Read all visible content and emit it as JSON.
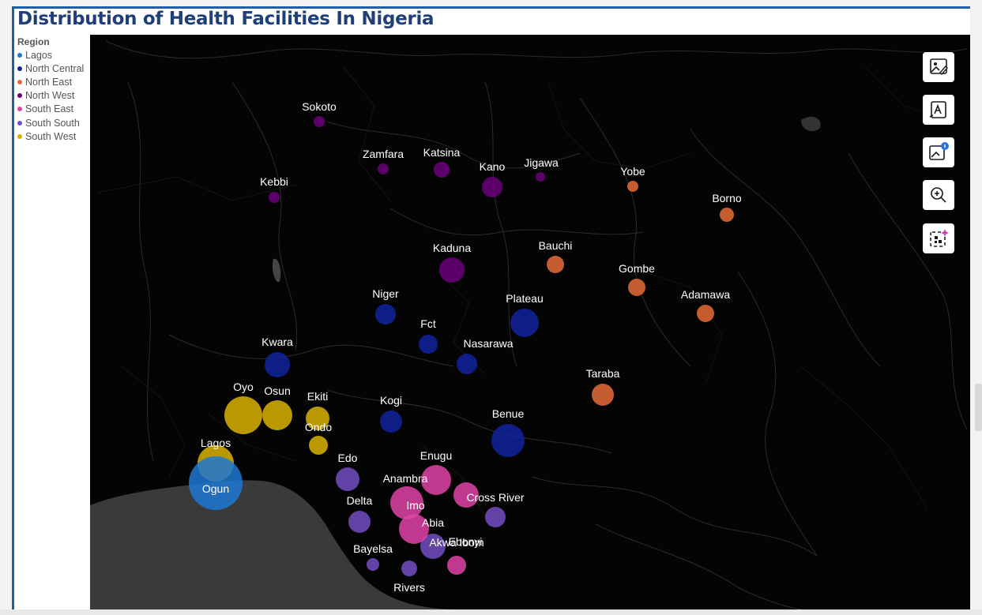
{
  "title": "Distribution of Health Facilities In Nigeria",
  "legend": {
    "title": "Region",
    "items": [
      {
        "label": "Lagos",
        "color": "#1f77d4"
      },
      {
        "label": "North Central",
        "color": "#12239e"
      },
      {
        "label": "North East",
        "color": "#e66c37"
      },
      {
        "label": "North West",
        "color": "#6b007b"
      },
      {
        "label": "South East",
        "color": "#e044a7"
      },
      {
        "label": "South South",
        "color": "#744ec2"
      },
      {
        "label": "South West",
        "color": "#d9b300"
      }
    ]
  },
  "toolbar": {
    "buttons": [
      {
        "name": "edit-image-button",
        "icon": "image-pen-icon"
      },
      {
        "name": "translate-button",
        "icon": "translate-icon"
      },
      {
        "name": "ai-image-button",
        "icon": "sparkle-image-icon"
      },
      {
        "name": "zoom-button",
        "icon": "zoom-in-icon"
      },
      {
        "name": "qr-button",
        "icon": "qr-sparkle-icon"
      }
    ]
  },
  "chart_data": {
    "type": "scatter",
    "legend_placement": "left",
    "points": [
      {
        "state": "Sokoto",
        "region": "North West"
      },
      {
        "state": "Zamfara",
        "region": "North West"
      },
      {
        "state": "Katsina",
        "region": "North West"
      },
      {
        "state": "Kano",
        "region": "North West"
      },
      {
        "state": "Jigawa",
        "region": "North West"
      },
      {
        "state": "Kebbi",
        "region": "North West"
      },
      {
        "state": "Kaduna",
        "region": "North West"
      },
      {
        "state": "Yobe",
        "region": "North East"
      },
      {
        "state": "Borno",
        "region": "North East"
      },
      {
        "state": "Bauchi",
        "region": "North East"
      },
      {
        "state": "Gombe",
        "region": "North East"
      },
      {
        "state": "Adamawa",
        "region": "North East"
      },
      {
        "state": "Taraba",
        "region": "North East"
      },
      {
        "state": "Niger",
        "region": "North Central"
      },
      {
        "state": "Plateau",
        "region": "North Central"
      },
      {
        "state": "Fct",
        "region": "North Central"
      },
      {
        "state": "Nasarawa",
        "region": "North Central"
      },
      {
        "state": "Kwara",
        "region": "North Central"
      },
      {
        "state": "Kogi",
        "region": "North Central"
      },
      {
        "state": "Benue",
        "region": "North Central"
      },
      {
        "state": "Oyo",
        "region": "South West"
      },
      {
        "state": "Osun",
        "region": "South West"
      },
      {
        "state": "Ekiti",
        "region": "South West"
      },
      {
        "state": "Ondo",
        "region": "South West"
      },
      {
        "state": "Lagos",
        "region": "South West"
      },
      {
        "state": "Ogun",
        "region": "Lagos"
      },
      {
        "state": "Edo",
        "region": "South South"
      },
      {
        "state": "Delta",
        "region": "South South"
      },
      {
        "state": "Bayelsa",
        "region": "South South"
      },
      {
        "state": "Rivers",
        "region": "South South"
      },
      {
        "state": "Akwa Ibom",
        "region": "South South"
      },
      {
        "state": "Cross River",
        "region": "South South"
      },
      {
        "state": "Enugu",
        "region": "South East"
      },
      {
        "state": "Anambra",
        "region": "South East"
      },
      {
        "state": "Imo",
        "region": "South East"
      },
      {
        "state": "Abia",
        "region": "South East"
      },
      {
        "state": "Ebonyi",
        "region": "South East"
      }
    ]
  }
}
